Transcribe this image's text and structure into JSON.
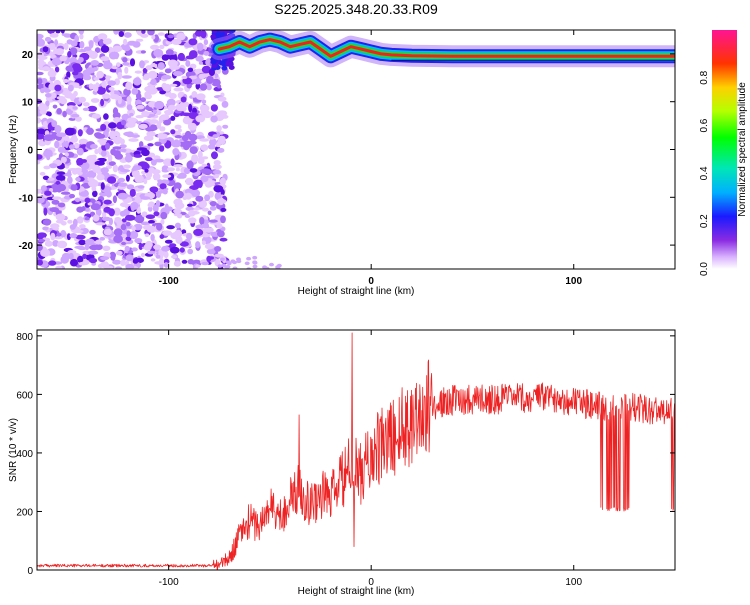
{
  "title": "S225.2025.348.20.33.R09",
  "colors": {
    "frame": "#000000",
    "snr_line": "#ee2222",
    "ridge_core": "#ee2222",
    "ridge_mid": "#22dd22",
    "ridge_outer": "#00bbee",
    "ridge_edge": "#2222ee",
    "noise": [
      "#e6c8ff",
      "#cfa6ff",
      "#a46cf5",
      "#7a2bf0",
      "#5a10e0"
    ]
  },
  "chart_data": [
    {
      "type": "heatmap",
      "title": "S225.2025.348.20.33.R09",
      "xlabel": "Height of straight line (km)",
      "ylabel": "Frequency (Hz)",
      "xlim": [
        -165,
        150
      ],
      "ylim": [
        -25,
        25
      ],
      "xticks": [
        -100,
        0,
        100
      ],
      "xtick_labels": [
        "-100",
        "0",
        "100"
      ],
      "yticks": [
        -20,
        -10,
        0,
        10,
        20
      ],
      "ytick_labels": [
        "-20",
        "-10",
        "0",
        "10",
        "20"
      ],
      "noise_region_x": [
        -165,
        -75
      ],
      "ridge": {
        "x": [
          -75,
          -70,
          -65,
          -60,
          -55,
          -50,
          -45,
          -40,
          -35,
          -30,
          -25,
          -20,
          -15,
          -10,
          -5,
          0,
          5,
          10,
          20,
          40,
          60,
          80,
          100,
          120,
          140,
          150
        ],
        "y": [
          21.0,
          21.5,
          22.5,
          21.5,
          22.5,
          23.0,
          22.5,
          21.5,
          22.0,
          22.5,
          21.0,
          19.5,
          20.5,
          21.5,
          21.0,
          20.5,
          20.0,
          19.8,
          19.6,
          19.5,
          19.5,
          19.5,
          19.5,
          19.5,
          19.5,
          19.5
        ]
      },
      "colorbar": {
        "label": "Normalized spectral amplitude",
        "range": [
          0,
          1
        ],
        "ticks": [
          0.0,
          0.2,
          0.4,
          0.6,
          0.8
        ],
        "tick_labels": [
          "0.0",
          "0.2",
          "0.4",
          "0.6",
          "0.8"
        ]
      }
    },
    {
      "type": "line",
      "xlabel": "Height of straight line (km)",
      "ylabel": "SNR (10 * v/v)",
      "xlim": [
        -165,
        150
      ],
      "ylim": [
        0,
        820
      ],
      "xticks": [
        -100,
        0,
        100
      ],
      "xtick_labels": [
        "-100",
        "0",
        "100"
      ],
      "yticks": [
        0,
        200,
        400,
        600,
        800
      ],
      "ytick_labels": [
        "0",
        "200",
        "400",
        "600",
        "800"
      ],
      "series": [
        {
          "name": "SNR",
          "envelope": {
            "x": [
              -165,
              -80,
              -75,
              -70,
              -65,
              -60,
              -55,
              -50,
              -45,
              -40,
              -35,
              -30,
              -25,
              -20,
              -15,
              -10,
              -5,
              0,
              5,
              10,
              15,
              20,
              25,
              30,
              40,
              50,
              60,
              70,
              80,
              90,
              100,
              110,
              120,
              130,
              140,
              150
            ],
            "y": [
              15,
              15,
              20,
              40,
              120,
              170,
              150,
              220,
              180,
              240,
              280,
              220,
              260,
              250,
              300,
              350,
              330,
              390,
              420,
              450,
              480,
              520,
              540,
              560,
              580,
              585,
              585,
              585,
              585,
              590,
              575,
              560,
              560,
              555,
              545,
              540
            ]
          },
          "spikes": [
            {
              "x": -35.5,
              "y": 530
            },
            {
              "x": -9.5,
              "y": 810
            },
            {
              "x": -8.5,
              "y": 80
            }
          ],
          "dropouts": [
            {
              "x0": 113,
              "x1": 128,
              "y": 200
            },
            {
              "x0": 147,
              "x1": 150,
              "y": 200
            }
          ]
        }
      ]
    }
  ]
}
